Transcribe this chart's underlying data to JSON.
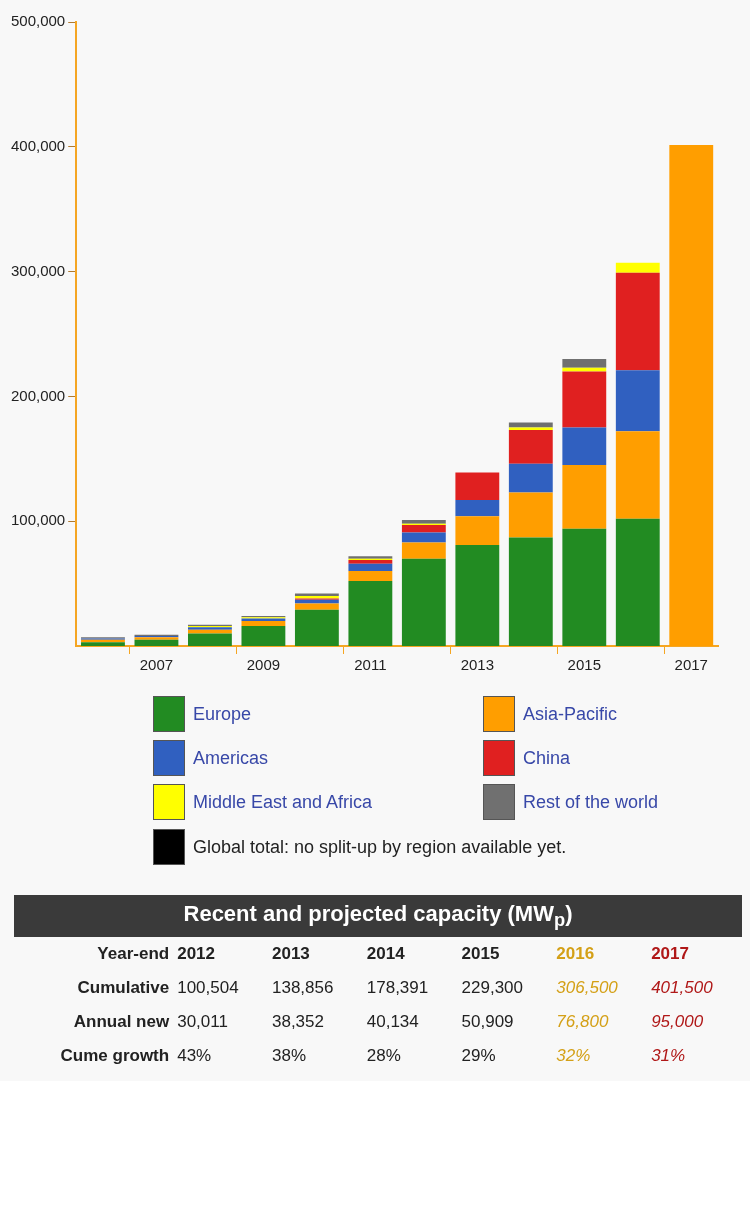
{
  "chart_data": {
    "type": "bar",
    "stacked": true,
    "legend": "bottom",
    "grid": false,
    "categories": [
      null,
      "2007",
      null,
      "2009",
      null,
      "2011",
      null,
      "2013",
      null,
      "2015",
      null,
      "2017"
    ],
    "ylim": [
      0,
      500000
    ],
    "yticks": [
      {
        "value": 100000,
        "label": "100,000"
      },
      {
        "value": 200000,
        "label": "200,000"
      },
      {
        "value": 300000,
        "label": "300,000"
      },
      {
        "value": 400000,
        "label": "400,000"
      },
      {
        "value": 500000,
        "label": "500,000"
      }
    ],
    "series": [
      {
        "name": "Europe",
        "color": "#228b22",
        "values": [
          3000,
          5000,
          10000,
          16000,
          29000,
          52000,
          70000,
          81000,
          87000,
          94000,
          102000,
          null
        ]
      },
      {
        "name": "Asia-Pacific",
        "color": "#ff9e00",
        "values": [
          2000,
          2000,
          3000,
          4000,
          5000,
          8000,
          13000,
          23000,
          36000,
          51000,
          70000,
          null
        ]
      },
      {
        "name": "Americas",
        "color": "#3060c0",
        "values": [
          1000,
          1000,
          2000,
          2000,
          3000,
          6000,
          8000,
          13000,
          23000,
          30000,
          49000,
          null
        ]
      },
      {
        "name": "China",
        "color": "#e02020",
        "values": [
          null,
          null,
          null,
          null,
          1000,
          3000,
          6000,
          22000,
          27000,
          45000,
          78000,
          null
        ]
      },
      {
        "name": "Middle East and Africa",
        "color": "#ffff00",
        "values": [
          null,
          null,
          1000,
          1000,
          2000,
          1000,
          1000,
          null,
          2000,
          3000,
          8000,
          null
        ]
      },
      {
        "name": "Rest of the world",
        "color": "#707070",
        "values": [
          1000,
          1000,
          1000,
          1000,
          2000,
          2000,
          3000,
          null,
          4000,
          7000,
          null,
          null
        ]
      },
      {
        "color": "#ff9e00",
        "values": [
          null,
          null,
          null,
          null,
          null,
          null,
          null,
          null,
          null,
          null,
          null,
          401500
        ]
      }
    ],
    "annotations": [
      "Global total: no split-up by region available yet.",
      "Recent and projected capacity (MW$_{p}$)",
      "Year-end",
      "2012",
      "2013",
      "2014",
      "2015",
      "2016",
      "2017",
      "Cumulative",
      "100,504",
      "138,856",
      "178,391",
      "229,300",
      "306,500",
      "401,500",
      "Annual new",
      "30,011",
      "38,352",
      "40,134",
      "50,909",
      "76,800",
      "95,000",
      "Cume growth",
      "43%",
      "38%",
      "28%",
      "29%",
      "32%",
      "31%"
    ]
  }
}
